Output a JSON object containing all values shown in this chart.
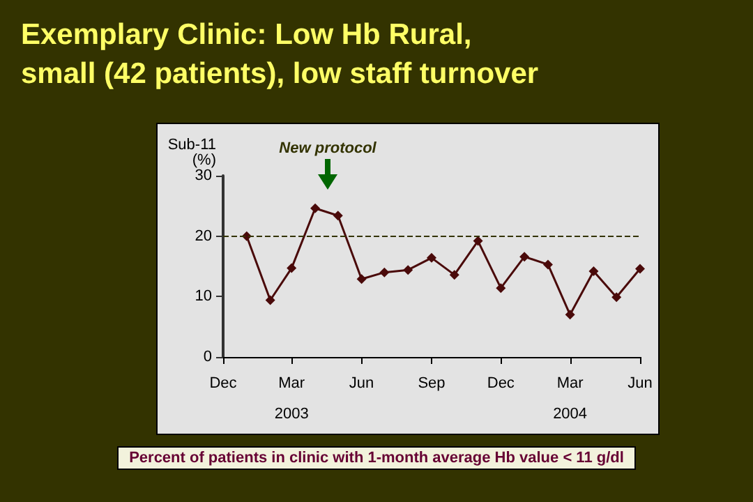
{
  "chart_data": {
    "type": "line",
    "title": "Exemplary Clinic: Low Hb Rural,\nsmall (42 patients), low staff turnover",
    "ylabel": "Sub-11\n(%)",
    "x": [
      "2003-01",
      "2003-02",
      "2003-03",
      "2003-04",
      "2003-05",
      "2003-06",
      "2003-07",
      "2003-08",
      "2003-09",
      "2003-10",
      "2003-11",
      "2003-12",
      "2004-01",
      "2004-02",
      "2004-03",
      "2004-04",
      "2004-05",
      "2004-06"
    ],
    "series": [
      {
        "color": "#4a0a0a",
        "values": [
          20.0,
          9.4,
          14.7,
          24.6,
          23.4,
          12.9,
          14.0,
          14.4,
          16.4,
          13.6,
          19.2,
          11.4,
          16.6,
          15.3,
          7.0,
          14.2,
          9.9,
          14.6
        ]
      }
    ],
    "xlim": [
      "2002-12",
      "2004-06"
    ],
    "xticks": [
      {
        "value": "2002-12",
        "label": "Dec"
      },
      {
        "value": "2003-03",
        "label": "Mar\n2003"
      },
      {
        "value": "2003-06",
        "label": "Jun"
      },
      {
        "value": "2003-09",
        "label": "Sep"
      },
      {
        "value": "2003-12",
        "label": "Dec"
      },
      {
        "value": "2004-03",
        "label": "Mar\n2004"
      },
      {
        "value": "2004-06",
        "label": "Jun"
      }
    ],
    "ylim": [
      0,
      30
    ],
    "yticks": [
      0,
      10,
      20,
      30
    ],
    "ref_lines": [
      {
        "axis": "y",
        "value": 20,
        "label": null,
        "color": "#333300",
        "line_style": "dashed"
      }
    ],
    "annotations": [
      "New protocol",
      "Percent of patients in clinic with 1-month average Hb value < 11 g/dl"
    ],
    "marker": "diamond",
    "line_style": "solid",
    "grid": false
  }
}
